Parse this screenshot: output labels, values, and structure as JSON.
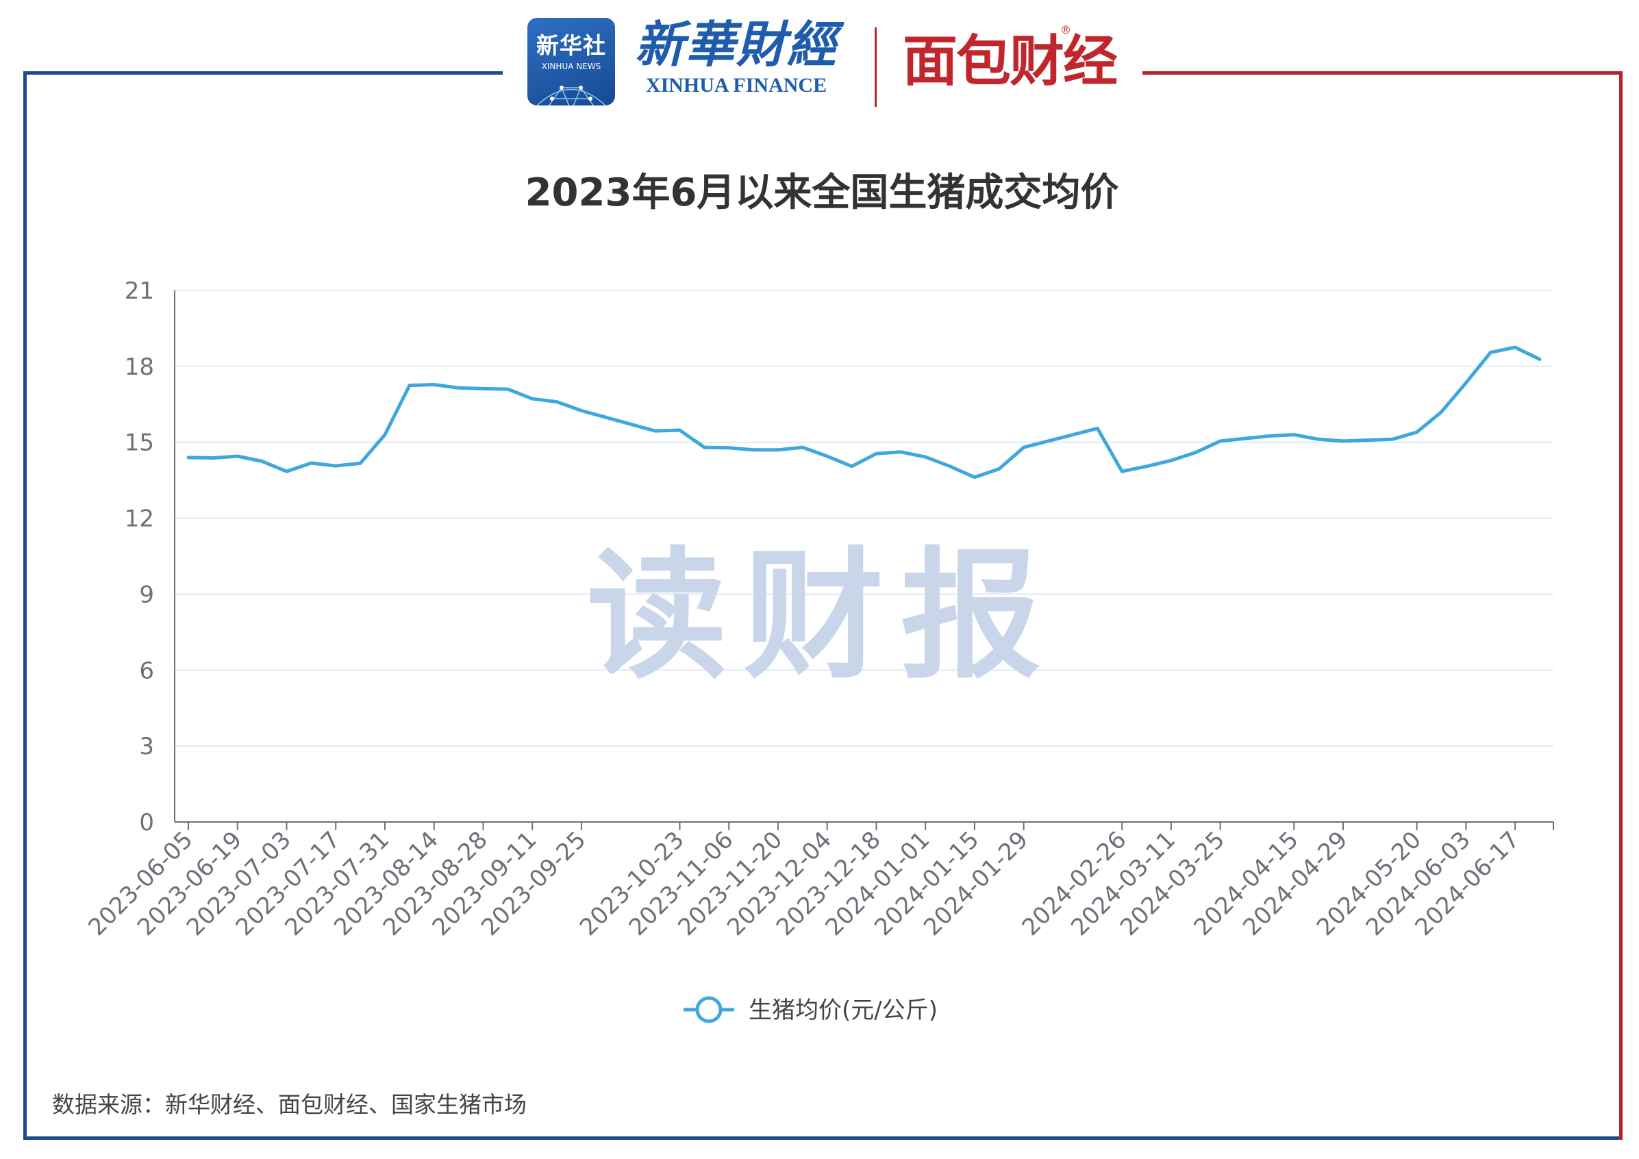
{
  "header": {
    "xinhua_badge_cn": "新华社",
    "xinhua_badge_en": "XINHUA NEWS",
    "xinhua_finance_cn": "新華財經",
    "xinhua_finance_en": "XINHUA FINANCE",
    "mianbao_logo": "面包财经",
    "registered_mark": "®"
  },
  "watermark": "读财报",
  "source_note": "数据来源：新华财经、面包财经、国家生猪市场",
  "colors": {
    "line": "#3fa7dc",
    "grid": "#e3e8f5",
    "axis": "#6e7079",
    "frame_left": "#1d4a8c",
    "frame_right": "#b3242c",
    "title": "#333333",
    "watermark": "#c9d6ea"
  },
  "chart_data": {
    "type": "line",
    "title": "2023年6月以来全国生猪成交均价",
    "xlabel": "",
    "ylabel": "",
    "ylim": [
      0,
      21
    ],
    "yticks": [
      0,
      3,
      6,
      9,
      12,
      15,
      18,
      21
    ],
    "grid": true,
    "legend_position": "bottom-center",
    "x_tick_labels": [
      "2023-06-05",
      "2023-06-19",
      "2023-07-03",
      "2023-07-17",
      "2023-07-31",
      "2023-08-14",
      "2023-08-28",
      "2023-09-11",
      "2023-09-25",
      "2023-10-23",
      "2023-11-06",
      "2023-11-20",
      "2023-12-04",
      "2023-12-18",
      "2024-01-01",
      "2024-01-15",
      "2024-01-29",
      "2024-02-26",
      "2024-03-11",
      "2024-03-25",
      "2024-04-15",
      "2024-04-29",
      "2024-05-20",
      "2024-06-03",
      "2024-06-17"
    ],
    "x": [
      "2023-06-05",
      "2023-06-12",
      "2023-06-19",
      "2023-06-26",
      "2023-07-03",
      "2023-07-10",
      "2023-07-17",
      "2023-07-24",
      "2023-07-31",
      "2023-08-07",
      "2023-08-14",
      "2023-08-21",
      "2023-08-28",
      "2023-09-04",
      "2023-09-11",
      "2023-09-18",
      "2023-09-25",
      "2023-10-16",
      "2023-10-23",
      "2023-10-30",
      "2023-11-06",
      "2023-11-13",
      "2023-11-20",
      "2023-11-27",
      "2023-12-04",
      "2023-12-11",
      "2023-12-18",
      "2023-12-25",
      "2024-01-01",
      "2024-01-08",
      "2024-01-15",
      "2024-01-22",
      "2024-01-29",
      "2024-02-19",
      "2024-02-26",
      "2024-03-04",
      "2024-03-11",
      "2024-03-18",
      "2024-03-25",
      "2024-04-08",
      "2024-04-15",
      "2024-04-22",
      "2024-04-29",
      "2024-05-13",
      "2024-05-20",
      "2024-05-27",
      "2024-06-03",
      "2024-06-10",
      "2024-06-17",
      "2024-06-24"
    ],
    "series": [
      {
        "name": "生猪均价(元/公斤)",
        "values": [
          14.4,
          14.38,
          14.45,
          14.25,
          13.85,
          14.18,
          14.07,
          14.17,
          15.3,
          17.25,
          17.28,
          17.15,
          17.12,
          17.1,
          16.72,
          16.6,
          16.25,
          15.45,
          15.48,
          14.8,
          14.78,
          14.7,
          14.7,
          14.8,
          14.45,
          14.05,
          14.55,
          14.62,
          14.42,
          14.05,
          13.62,
          13.95,
          14.8,
          15.55,
          13.85,
          14.05,
          14.28,
          14.6,
          15.05,
          15.25,
          15.3,
          15.12,
          15.05,
          15.12,
          15.4,
          16.2,
          17.35,
          18.55,
          18.75,
          18.28
        ]
      }
    ]
  }
}
